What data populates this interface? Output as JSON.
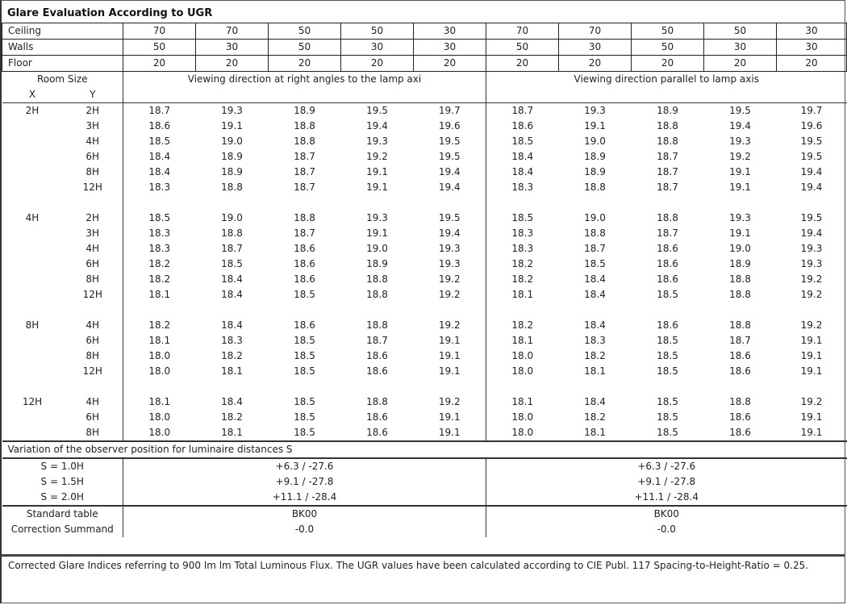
{
  "title": "Glare Evaluation According to UGR",
  "reflectances": [
    {
      "label": "Ceiling",
      "values": [
        "70",
        "70",
        "50",
        "50",
        "30",
        "70",
        "70",
        "50",
        "50",
        "30"
      ]
    },
    {
      "label": "Walls",
      "values": [
        "50",
        "30",
        "50",
        "30",
        "30",
        "50",
        "30",
        "50",
        "30",
        "30"
      ]
    },
    {
      "label": "Floor",
      "values": [
        "20",
        "20",
        "20",
        "20",
        "20",
        "20",
        "20",
        "20",
        "20",
        "20"
      ]
    }
  ],
  "header": {
    "room_size": "Room Size",
    "x": "X",
    "y": "Y",
    "direction_right_angles": "Viewing direction at right angles to the lamp axi",
    "direction_parallel": "Viewing direction parallel to lamp axis"
  },
  "groups": [
    {
      "x": "2H",
      "rows": [
        {
          "y": "2H",
          "values": [
            "18.7",
            "19.3",
            "18.9",
            "19.5",
            "19.7",
            "18.7",
            "19.3",
            "18.9",
            "19.5",
            "19.7"
          ]
        },
        {
          "y": "3H",
          "values": [
            "18.6",
            "19.1",
            "18.8",
            "19.4",
            "19.6",
            "18.6",
            "19.1",
            "18.8",
            "19.4",
            "19.6"
          ]
        },
        {
          "y": "4H",
          "values": [
            "18.5",
            "19.0",
            "18.8",
            "19.3",
            "19.5",
            "18.5",
            "19.0",
            "18.8",
            "19.3",
            "19.5"
          ]
        },
        {
          "y": "6H",
          "values": [
            "18.4",
            "18.9",
            "18.7",
            "19.2",
            "19.5",
            "18.4",
            "18.9",
            "18.7",
            "19.2",
            "19.5"
          ]
        },
        {
          "y": "8H",
          "values": [
            "18.4",
            "18.9",
            "18.7",
            "19.1",
            "19.4",
            "18.4",
            "18.9",
            "18.7",
            "19.1",
            "19.4"
          ]
        },
        {
          "y": "12H",
          "values": [
            "18.3",
            "18.8",
            "18.7",
            "19.1",
            "19.4",
            "18.3",
            "18.8",
            "18.7",
            "19.1",
            "19.4"
          ]
        }
      ]
    },
    {
      "x": "4H",
      "rows": [
        {
          "y": "2H",
          "values": [
            "18.5",
            "19.0",
            "18.8",
            "19.3",
            "19.5",
            "18.5",
            "19.0",
            "18.8",
            "19.3",
            "19.5"
          ]
        },
        {
          "y": "3H",
          "values": [
            "18.3",
            "18.8",
            "18.7",
            "19.1",
            "19.4",
            "18.3",
            "18.8",
            "18.7",
            "19.1",
            "19.4"
          ]
        },
        {
          "y": "4H",
          "values": [
            "18.3",
            "18.7",
            "18.6",
            "19.0",
            "19.3",
            "18.3",
            "18.7",
            "18.6",
            "19.0",
            "19.3"
          ]
        },
        {
          "y": "6H",
          "values": [
            "18.2",
            "18.5",
            "18.6",
            "18.9",
            "19.3",
            "18.2",
            "18.5",
            "18.6",
            "18.9",
            "19.3"
          ]
        },
        {
          "y": "8H",
          "values": [
            "18.2",
            "18.4",
            "18.6",
            "18.8",
            "19.2",
            "18.2",
            "18.4",
            "18.6",
            "18.8",
            "19.2"
          ]
        },
        {
          "y": "12H",
          "values": [
            "18.1",
            "18.4",
            "18.5",
            "18.8",
            "19.2",
            "18.1",
            "18.4",
            "18.5",
            "18.8",
            "19.2"
          ]
        }
      ]
    },
    {
      "x": "8H",
      "rows": [
        {
          "y": "4H",
          "values": [
            "18.2",
            "18.4",
            "18.6",
            "18.8",
            "19.2",
            "18.2",
            "18.4",
            "18.6",
            "18.8",
            "19.2"
          ]
        },
        {
          "y": "6H",
          "values": [
            "18.1",
            "18.3",
            "18.5",
            "18.7",
            "19.1",
            "18.1",
            "18.3",
            "18.5",
            "18.7",
            "19.1"
          ]
        },
        {
          "y": "8H",
          "values": [
            "18.0",
            "18.2",
            "18.5",
            "18.6",
            "19.1",
            "18.0",
            "18.2",
            "18.5",
            "18.6",
            "19.1"
          ]
        },
        {
          "y": "12H",
          "values": [
            "18.0",
            "18.1",
            "18.5",
            "18.6",
            "19.1",
            "18.0",
            "18.1",
            "18.5",
            "18.6",
            "19.1"
          ]
        }
      ]
    },
    {
      "x": "12H",
      "rows": [
        {
          "y": "4H",
          "values": [
            "18.1",
            "18.4",
            "18.5",
            "18.8",
            "19.2",
            "18.1",
            "18.4",
            "18.5",
            "18.8",
            "19.2"
          ]
        },
        {
          "y": "6H",
          "values": [
            "18.0",
            "18.2",
            "18.5",
            "18.6",
            "19.1",
            "18.0",
            "18.2",
            "18.5",
            "18.6",
            "19.1"
          ]
        },
        {
          "y": "8H",
          "values": [
            "18.0",
            "18.1",
            "18.5",
            "18.6",
            "19.1",
            "18.0",
            "18.1",
            "18.5",
            "18.6",
            "19.1"
          ]
        }
      ]
    }
  ],
  "variation": {
    "title": "Variation of the observer position for luminaire distances S",
    "rows": [
      {
        "label": "S = 1.0H",
        "right_angles": "+6.3 / -27.6",
        "parallel": "+6.3 / -27.6"
      },
      {
        "label": "S = 1.5H",
        "right_angles": "+9.1 / -27.8",
        "parallel": "+9.1 / -27.8"
      },
      {
        "label": "S = 2.0H",
        "right_angles": "+11.1 / -28.4",
        "parallel": "+11.1 / -28.4"
      }
    ]
  },
  "standard": {
    "table_label": "Standard table",
    "table_right": "BK00",
    "table_parallel": "BK00",
    "correction_label": "Correction Summand",
    "correction_right": "-0.0",
    "correction_parallel": "-0.0"
  },
  "footer": "Corrected Glare Indices referring to 900 lm lm Total Luminous Flux. The UGR values have been calculated according to CIE Publ. 117    Spacing-to-Height-Ratio = 0.25."
}
